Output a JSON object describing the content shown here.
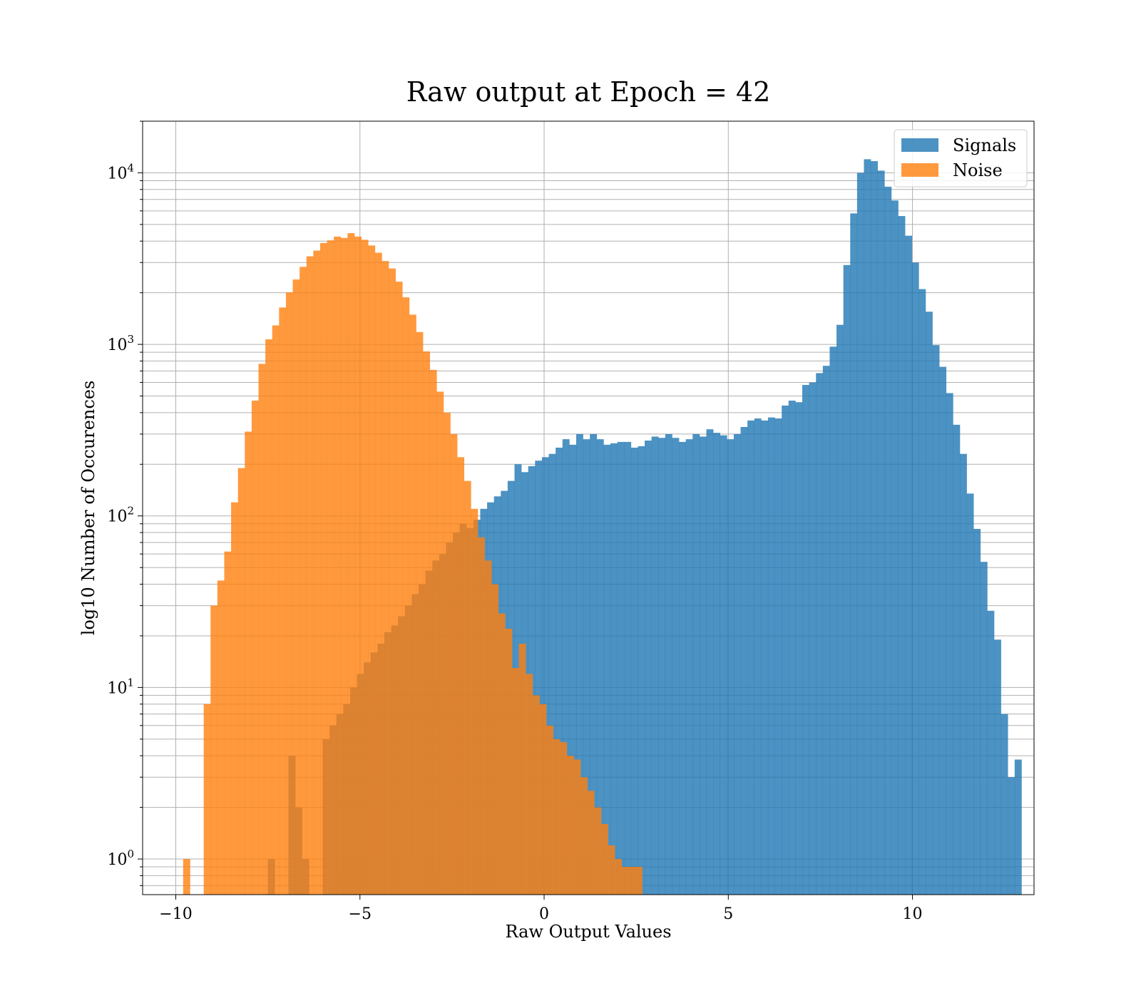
{
  "colors": {
    "signals": "#1f77b4",
    "noise": "#ff7f0e",
    "grid": "#b0b0b0",
    "background": "#ffffff"
  },
  "chart_data": {
    "type": "bar",
    "title": "Raw output at Epoch = 42",
    "xlabel": "Raw Output Values",
    "ylabel": "log10 Number of Occurences",
    "xlim": [
      -10.9,
      13.3
    ],
    "ylim": [
      0.62,
      20000
    ],
    "yscale": "log",
    "grid": true,
    "legend_position": "top-right",
    "x_ticks": [
      {
        "value": -10,
        "label": "−10"
      },
      {
        "value": -5,
        "label": "−5"
      },
      {
        "value": 0,
        "label": "0"
      },
      {
        "value": 5,
        "label": "5"
      },
      {
        "value": 10,
        "label": "10"
      }
    ],
    "y_ticks": [
      {
        "value": 1,
        "base": "10",
        "exp": "0"
      },
      {
        "value": 10,
        "base": "10",
        "exp": "1"
      },
      {
        "value": 100,
        "base": "10",
        "exp": "2"
      },
      {
        "value": 1000,
        "base": "10",
        "exp": "3"
      },
      {
        "value": 10000,
        "base": "10",
        "exp": "4"
      }
    ],
    "series": [
      {
        "name": "Signals",
        "color": "#1f77b4",
        "opacity": 0.8,
        "bin_start": -7.5,
        "bin_width": 0.186,
        "values": [
          1,
          0,
          0,
          4,
          2,
          1,
          0,
          0,
          5,
          6,
          7,
          8,
          10,
          12,
          14,
          16,
          18,
          21,
          23,
          26,
          30,
          35,
          40,
          48,
          55,
          60,
          70,
          80,
          90,
          85,
          95,
          110,
          120,
          130,
          140,
          160,
          200,
          180,
          195,
          210,
          220,
          230,
          250,
          280,
          260,
          300,
          280,
          300,
          280,
          260,
          265,
          270,
          270,
          250,
          255,
          275,
          290,
          285,
          300,
          285,
          270,
          280,
          300,
          290,
          320,
          305,
          295,
          280,
          300,
          330,
          360,
          370,
          360,
          375,
          370,
          440,
          470,
          460,
          580,
          600,
          680,
          750,
          970,
          1300,
          2900,
          5800,
          10000,
          12000,
          11700,
          10300,
          8300,
          6900,
          5600,
          4300,
          3000,
          2100,
          1550,
          990,
          740,
          520,
          340,
          230,
          135,
          84,
          54,
          28,
          19,
          7,
          3,
          3.8
        ]
      },
      {
        "name": "Noise",
        "color": "#ff7f0e",
        "opacity": 0.8,
        "bin_start": -9.8,
        "bin_width": 0.186,
        "values": [
          1,
          0,
          0,
          8,
          30,
          42,
          62,
          120,
          190,
          310,
          470,
          770,
          1070,
          1290,
          1640,
          2010,
          2390,
          2830,
          3260,
          3520,
          3900,
          4040,
          4250,
          4170,
          4450,
          4250,
          4070,
          3770,
          3420,
          3060,
          2770,
          2320,
          1880,
          1490,
          1180,
          910,
          710,
          530,
          400,
          300,
          220,
          160,
          110,
          75,
          55,
          40,
          27,
          22,
          13,
          18,
          12,
          9,
          8,
          6,
          5,
          4.8,
          4,
          3.8,
          3,
          2.5,
          2,
          1.6,
          1.2,
          1,
          0.9,
          0.9,
          0.9
        ]
      }
    ]
  }
}
